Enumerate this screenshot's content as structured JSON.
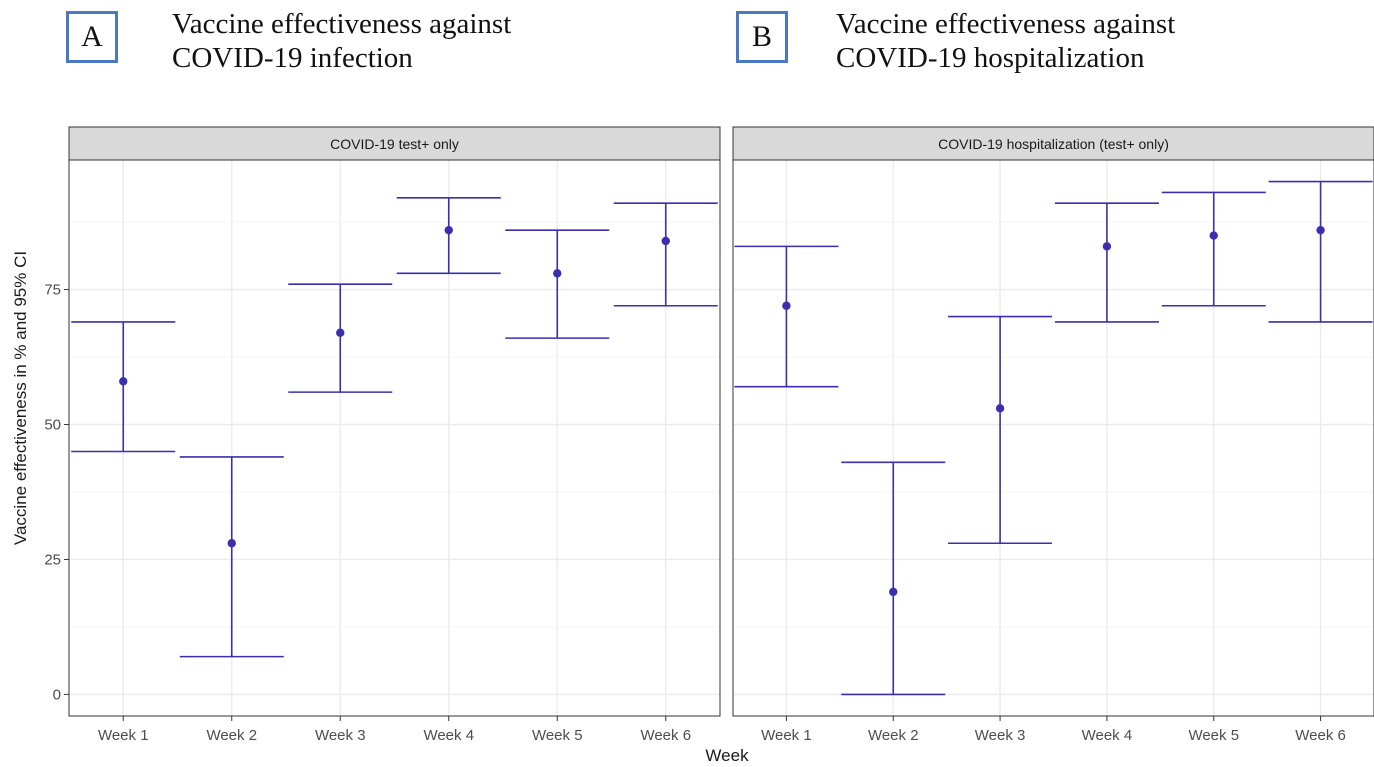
{
  "colors": {
    "mark": "#3b2fb0",
    "strip_fill": "#d9d9d9",
    "panel_border": "#333333",
    "grid_major": "#ebebeb",
    "grid_minor": "#f5f5f5",
    "tick_text": "#4d4d4d",
    "letter_border": "#4a78c2"
  },
  "headings": [
    {
      "letter": "A",
      "line1": "Vaccine effectiveness against",
      "line2": "COVID-19 infection"
    },
    {
      "letter": "B",
      "line1": "Vaccine effectiveness against",
      "line2": "COVID-19 hospitalization"
    }
  ],
  "chart_data": {
    "type": "scatter",
    "subtype": "point-with-errorbars",
    "xlabel": "Week",
    "ylabel": "Vaccine effectiveness in % and 95% CI",
    "categories": [
      "Week 1",
      "Week 2",
      "Week 3",
      "Week 4",
      "Week 5",
      "Week 6"
    ],
    "y_ticks": [
      0,
      25,
      50,
      75
    ],
    "ylim": [
      -4,
      99
    ],
    "grid": true,
    "panels": [
      {
        "strip": "COVID-19 test+ only",
        "estimate": [
          58,
          28,
          67,
          86,
          78,
          84
        ],
        "lower": [
          45,
          7,
          56,
          78,
          66,
          72
        ],
        "upper": [
          69,
          44,
          76,
          92,
          86,
          91
        ]
      },
      {
        "strip": "COVID-19 hospitalization (test+ only)",
        "estimate": [
          72,
          19,
          53,
          83,
          85,
          86
        ],
        "lower": [
          57,
          0,
          28,
          69,
          72,
          69
        ],
        "upper": [
          83,
          43,
          70,
          91,
          93,
          95
        ]
      }
    ]
  }
}
